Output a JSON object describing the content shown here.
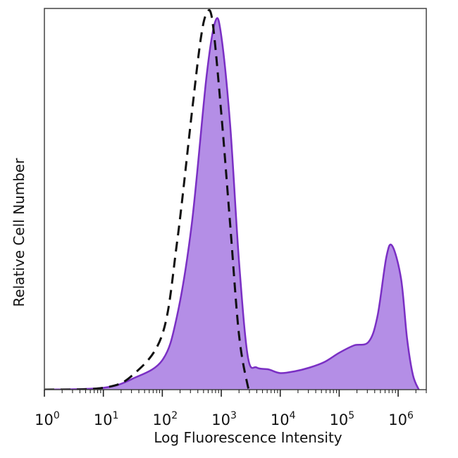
{
  "chart_data": {
    "type": "area",
    "xlabel": "Log Fluorescence Intensity",
    "ylabel": "Relative Cell Number",
    "x_scale": "log",
    "xlim": [
      1,
      3000000
    ],
    "ylim": [
      0,
      1
    ],
    "grid": false,
    "ticks": [
      {
        "base": "10",
        "exp": "0",
        "value": 1
      },
      {
        "base": "10",
        "exp": "1",
        "value": 10
      },
      {
        "base": "10",
        "exp": "2",
        "value": 100
      },
      {
        "base": "10",
        "exp": "3",
        "value": 1000
      },
      {
        "base": "10",
        "exp": "4",
        "value": 10000
      },
      {
        "base": "10",
        "exp": "5",
        "value": 100000
      },
      {
        "base": "10",
        "exp": "6",
        "value": 1000000
      }
    ],
    "series": [
      {
        "style": "filled",
        "color": "#b48ee6",
        "stroke": "#7a2fc4",
        "points": [
          [
            1,
            0
          ],
          [
            10,
            0.005
          ],
          [
            31.6,
            0.03
          ],
          [
            100,
            0.08
          ],
          [
            177.8,
            0.2
          ],
          [
            316.2,
            0.45
          ],
          [
            562.3,
            0.85
          ],
          [
            794.3,
            1.0
          ],
          [
            1000,
            0.96
          ],
          [
            1412.5,
            0.72
          ],
          [
            1995.3,
            0.35
          ],
          [
            2818.4,
            0.09
          ],
          [
            3981.1,
            0.06
          ],
          [
            6309.6,
            0.055
          ],
          [
            10000,
            0.045
          ],
          [
            17782.8,
            0.05
          ],
          [
            31622.8,
            0.06
          ],
          [
            56234.1,
            0.075
          ],
          [
            100000,
            0.1
          ],
          [
            177827.9,
            0.12
          ],
          [
            316227.8,
            0.13
          ],
          [
            446683.6,
            0.2
          ],
          [
            630957.3,
            0.36
          ],
          [
            794328.2,
            0.39
          ],
          [
            1122018.5,
            0.3
          ],
          [
            1412537.5,
            0.14
          ],
          [
            1778279.4,
            0.04
          ],
          [
            2238721.1,
            0
          ]
        ]
      },
      {
        "style": "dashed",
        "color": "#111111",
        "points": [
          [
            1,
            0
          ],
          [
            10,
            0.005
          ],
          [
            31.6,
            0.04
          ],
          [
            100,
            0.15
          ],
          [
            177.8,
            0.4
          ],
          [
            316.2,
            0.75
          ],
          [
            446.7,
            0.95
          ],
          [
            562.3,
            1.02
          ],
          [
            707.9,
            1.0
          ],
          [
            1000,
            0.75
          ],
          [
            1412.5,
            0.45
          ],
          [
            1995.3,
            0.15
          ],
          [
            2818.4,
            0.01
          ],
          [
            3162.3,
            0
          ]
        ]
      }
    ]
  }
}
